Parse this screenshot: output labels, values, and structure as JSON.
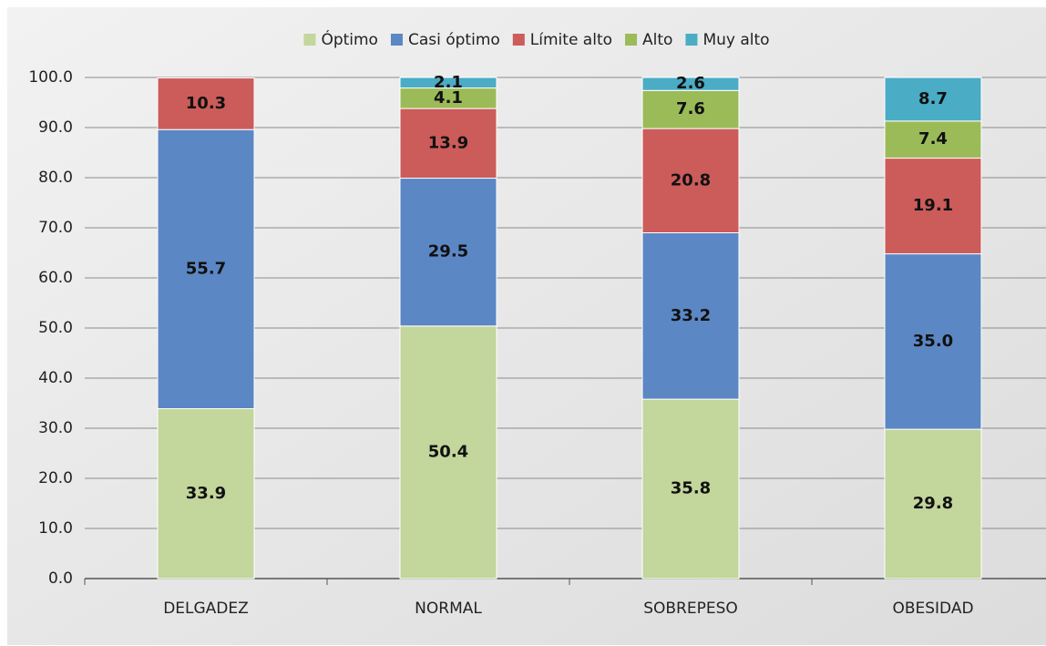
{
  "chart_data": {
    "type": "stacked_bar",
    "categories": [
      "DELGADEZ",
      "NORMAL",
      "SOBREPESO",
      "OBESIDAD"
    ],
    "series": [
      {
        "name": "Óptimo",
        "color": "#c3d69b",
        "values": [
          33.9,
          50.4,
          35.8,
          29.8
        ],
        "value_labels": [
          "33.9",
          "50.4",
          "35.8",
          "29.8"
        ]
      },
      {
        "name": "Casi óptimo",
        "color": "#5b87c4",
        "values": [
          55.7,
          29.5,
          33.2,
          35.0
        ],
        "value_labels": [
          "55.7",
          "29.5",
          "33.2",
          "35.0"
        ]
      },
      {
        "name": "Límite alto",
        "color": "#cb5c5a",
        "values": [
          10.3,
          13.9,
          20.8,
          19.1
        ],
        "value_labels": [
          "10.3",
          "13.9",
          "20.8",
          "19.1"
        ]
      },
      {
        "name": "Alto",
        "color": "#9bbb59",
        "values": [
          null,
          4.1,
          7.6,
          7.4
        ],
        "value_labels": [
          null,
          "4.1",
          "7.6",
          "7.4"
        ]
      },
      {
        "name": "Muy alto",
        "color": "#4bacc6",
        "values": [
          null,
          2.1,
          2.6,
          8.7
        ],
        "value_labels": [
          null,
          "2.1",
          "2.6",
          "8.7"
        ]
      }
    ],
    "ylim": [
      0,
      100
    ],
    "yticks": [
      {
        "value": 0,
        "label": "0.0"
      },
      {
        "value": 10,
        "label": "10.0"
      },
      {
        "value": 20,
        "label": "20.0"
      },
      {
        "value": 30,
        "label": "30.0"
      },
      {
        "value": 40,
        "label": "40.0"
      },
      {
        "value": 50,
        "label": "50.0"
      },
      {
        "value": 60,
        "label": "60.0"
      },
      {
        "value": 70,
        "label": "70.0"
      },
      {
        "value": 80,
        "label": "80.0"
      },
      {
        "value": 90,
        "label": "90.0"
      },
      {
        "value": 100,
        "label": "100.0"
      }
    ],
    "grid": true,
    "legend": "top"
  }
}
